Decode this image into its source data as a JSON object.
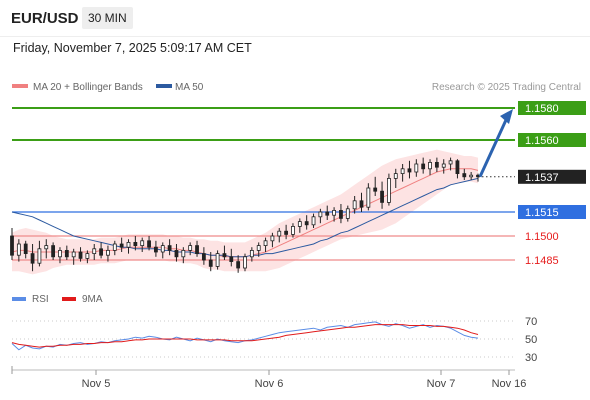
{
  "header": {
    "symbol": "EUR/USD",
    "timeframe": "30 MIN",
    "datetime": "Friday, November 7, 2025 5:09:17 AM CET"
  },
  "legend": {
    "ma20": "MA 20 + Bollinger Bands",
    "ma50": "MA 50",
    "credit": "Research © 2025 Trading Central",
    "rsi": "RSI",
    "rsi_ma": "9MA"
  },
  "colors": {
    "up": "#3b9e16",
    "down": "#e61c1c",
    "candle": "#222222",
    "ma20": "#f08080",
    "bollinger_fill": "#fde3e3",
    "ma50": "#2c5aa0",
    "pivot": "#2f6fe0",
    "support": "#ef8a8a",
    "current": "#222222",
    "arrow": "#2c63b0",
    "rsi": "#5b8de6",
    "rsi_ma": "#e11b1b"
  },
  "chart_data": {
    "type": "candlestick",
    "price_scale": [
      1.1475,
      1.1585
    ],
    "levels": [
      {
        "label": "1.1580",
        "value": 1.158,
        "kind": "resistance"
      },
      {
        "label": "1.1560",
        "value": 1.156,
        "kind": "resistance"
      },
      {
        "label": "1.1537",
        "value": 1.1537,
        "kind": "current"
      },
      {
        "label": "1.1515",
        "value": 1.1515,
        "kind": "pivot"
      },
      {
        "label": "1.1500",
        "value": 1.15,
        "kind": "support"
      },
      {
        "label": "1.1485",
        "value": 1.1485,
        "kind": "support"
      }
    ],
    "x_labels": [
      "Nov 5",
      "Nov 6",
      "Nov 7",
      "Nov 16"
    ],
    "candles": [
      [
        1.15,
        1.1505,
        1.1485,
        1.1488
      ],
      [
        1.1488,
        1.1498,
        1.1484,
        1.1495
      ],
      [
        1.1495,
        1.1497,
        1.1486,
        1.1489
      ],
      [
        1.1489,
        1.1495,
        1.1478,
        1.1483
      ],
      [
        1.1483,
        1.1497,
        1.1481,
        1.1492
      ],
      [
        1.1492,
        1.1498,
        1.1486,
        1.1494
      ],
      [
        1.1494,
        1.1496,
        1.1485,
        1.1487
      ],
      [
        1.1487,
        1.1493,
        1.1483,
        1.1491
      ],
      [
        1.1491,
        1.1494,
        1.1485,
        1.1487
      ],
      [
        1.1487,
        1.1492,
        1.1482,
        1.149
      ],
      [
        1.149,
        1.1493,
        1.1484,
        1.1486
      ],
      [
        1.1486,
        1.1491,
        1.1483,
        1.1489
      ],
      [
        1.1489,
        1.1495,
        1.1485,
        1.1492
      ],
      [
        1.1492,
        1.1496,
        1.1486,
        1.1488
      ],
      [
        1.1488,
        1.1494,
        1.1484,
        1.1491
      ],
      [
        1.1491,
        1.1497,
        1.1488,
        1.1495
      ],
      [
        1.1495,
        1.1499,
        1.149,
        1.1493
      ],
      [
        1.1493,
        1.1498,
        1.1489,
        1.1496
      ],
      [
        1.1496,
        1.15,
        1.1491,
        1.1494
      ],
      [
        1.1494,
        1.1499,
        1.149,
        1.1497
      ],
      [
        1.1497,
        1.15,
        1.1491,
        1.1493
      ],
      [
        1.1493,
        1.1497,
        1.1487,
        1.149
      ],
      [
        1.149,
        1.1496,
        1.1486,
        1.1494
      ],
      [
        1.1494,
        1.1498,
        1.1488,
        1.1491
      ],
      [
        1.1491,
        1.1495,
        1.1484,
        1.1487
      ],
      [
        1.1487,
        1.1493,
        1.1483,
        1.1491
      ],
      [
        1.1491,
        1.1496,
        1.1488,
        1.1494
      ],
      [
        1.1494,
        1.1497,
        1.1487,
        1.1489
      ],
      [
        1.1489,
        1.1493,
        1.1482,
        1.1485
      ],
      [
        1.1485,
        1.149,
        1.1478,
        1.1481
      ],
      [
        1.1481,
        1.1491,
        1.1479,
        1.1489
      ],
      [
        1.1489,
        1.1494,
        1.1485,
        1.1487
      ],
      [
        1.1487,
        1.1492,
        1.1481,
        1.1484
      ],
      [
        1.1484,
        1.1488,
        1.1477,
        1.148
      ],
      [
        1.148,
        1.1489,
        1.1478,
        1.1487
      ],
      [
        1.1487,
        1.1493,
        1.1484,
        1.1491
      ],
      [
        1.1491,
        1.1496,
        1.1487,
        1.1494
      ],
      [
        1.1494,
        1.1499,
        1.149,
        1.1497
      ],
      [
        1.1497,
        1.1502,
        1.1493,
        1.15
      ],
      [
        1.15,
        1.1505,
        1.1496,
        1.1503
      ],
      [
        1.1503,
        1.1507,
        1.1498,
        1.1501
      ],
      [
        1.1501,
        1.1508,
        1.1499,
        1.1506
      ],
      [
        1.1506,
        1.1511,
        1.1502,
        1.1509
      ],
      [
        1.1509,
        1.1513,
        1.1504,
        1.1507
      ],
      [
        1.1507,
        1.1514,
        1.1505,
        1.1512
      ],
      [
        1.1512,
        1.1517,
        1.1508,
        1.1515
      ],
      [
        1.1515,
        1.1519,
        1.151,
        1.1513
      ],
      [
        1.1513,
        1.1518,
        1.1509,
        1.1516
      ],
      [
        1.1516,
        1.152,
        1.1508,
        1.1511
      ],
      [
        1.1511,
        1.1519,
        1.1509,
        1.1517
      ],
      [
        1.1517,
        1.1525,
        1.1514,
        1.1522
      ],
      [
        1.1522,
        1.1527,
        1.1515,
        1.1518
      ],
      [
        1.1518,
        1.1533,
        1.1516,
        1.153
      ],
      [
        1.153,
        1.1537,
        1.1525,
        1.1528
      ],
      [
        1.1528,
        1.1534,
        1.1517,
        1.1521
      ],
      [
        1.1521,
        1.1539,
        1.1519,
        1.1536
      ],
      [
        1.1536,
        1.1542,
        1.153,
        1.1539
      ],
      [
        1.1539,
        1.1545,
        1.1534,
        1.1542
      ],
      [
        1.1542,
        1.1547,
        1.1536,
        1.154
      ],
      [
        1.154,
        1.1548,
        1.1537,
        1.1545
      ],
      [
        1.1545,
        1.1549,
        1.1539,
        1.1542
      ],
      [
        1.1542,
        1.1548,
        1.1538,
        1.1546
      ],
      [
        1.1546,
        1.1549,
        1.154,
        1.1543
      ],
      [
        1.1543,
        1.1548,
        1.1539,
        1.1545
      ],
      [
        1.1545,
        1.1549,
        1.1541,
        1.1547
      ],
      [
        1.1547,
        1.1548,
        1.1536,
        1.1539
      ],
      [
        1.1539,
        1.1542,
        1.1535,
        1.1537
      ],
      [
        1.1537,
        1.154,
        1.1535,
        1.1538
      ],
      [
        1.1538,
        1.1539,
        1.1534,
        1.1537
      ]
    ],
    "ma20": [
      1.149,
      1.1491,
      1.1491,
      1.149,
      1.149,
      1.149,
      1.149,
      1.149,
      1.149,
      1.149,
      1.149,
      1.149,
      1.149,
      1.1491,
      1.1491,
      1.1491,
      1.1492,
      1.1493,
      1.1493,
      1.1493,
      1.1493,
      1.1493,
      1.1493,
      1.1492,
      1.1492,
      1.1491,
      1.1491,
      1.149,
      1.1489,
      1.1488,
      1.1488,
      1.1487,
      1.1487,
      1.1487,
      1.1487,
      1.1488,
      1.1489,
      1.149,
      1.1492,
      1.1494,
      1.1496,
      1.1498,
      1.15,
      1.1502,
      1.1504,
      1.1506,
      1.1508,
      1.151,
      1.1512,
      1.1514,
      1.1516,
      1.1518,
      1.152,
      1.1522,
      1.1524,
      1.1526,
      1.1528,
      1.153,
      1.1532,
      1.1534,
      1.1536,
      1.1538,
      1.154,
      1.1541,
      1.1542,
      1.1542,
      1.1542,
      1.1542,
      1.1541
    ],
    "bb_width": [
      0.0012,
      0.0013,
      0.0014,
      0.0014,
      0.0013,
      0.0012,
      0.001,
      0.0009,
      0.0008,
      0.0008,
      0.0008,
      0.0008,
      0.0008,
      0.0008,
      0.0008,
      0.0008,
      0.0008,
      0.0008,
      0.0008,
      0.0008,
      0.0008,
      0.0008,
      0.0008,
      0.0008,
      0.0008,
      0.0008,
      0.0008,
      0.0008,
      0.0009,
      0.0009,
      0.0009,
      0.0009,
      0.0009,
      0.0009,
      0.0009,
      0.001,
      0.0011,
      0.0012,
      0.0013,
      0.0014,
      0.0014,
      0.0014,
      0.0014,
      0.0014,
      0.0014,
      0.0014,
      0.0014,
      0.0014,
      0.0014,
      0.0015,
      0.0016,
      0.0017,
      0.0018,
      0.0019,
      0.002,
      0.002,
      0.002,
      0.0019,
      0.0018,
      0.0017,
      0.0016,
      0.0015,
      0.0014,
      0.0012,
      0.001,
      0.0009,
      0.0008,
      0.0008,
      0.0008
    ],
    "ma50": [
      1.1515,
      1.1514,
      1.1513,
      1.1512,
      1.151,
      1.1508,
      1.1506,
      1.1504,
      1.1502,
      1.15,
      1.1499,
      1.1498,
      1.1497,
      1.1496,
      1.1495,
      1.1494,
      1.1493,
      1.1493,
      1.1492,
      1.1492,
      1.1492,
      1.1492,
      1.1491,
      1.1491,
      1.149,
      1.149,
      1.149,
      1.1489,
      1.1489,
      1.1488,
      1.1488,
      1.1488,
      1.1487,
      1.1487,
      1.1487,
      1.1488,
      1.1488,
      1.1489,
      1.1489,
      1.149,
      1.1491,
      1.1492,
      1.1493,
      1.1494,
      1.1495,
      1.1497,
      1.1498,
      1.15,
      1.1502,
      1.1503,
      1.1505,
      1.1507,
      1.1509,
      1.1511,
      1.1513,
      1.1515,
      1.1517,
      1.1519,
      1.1521,
      1.1523,
      1.1525,
      1.1527,
      1.1529,
      1.153,
      1.1532,
      1.1533,
      1.1534,
      1.1535,
      1.1536
    ],
    "projection": {
      "from": 1.1537,
      "to": 1.158
    },
    "rsi": {
      "ticks": [
        30,
        50,
        70
      ],
      "scale": [
        20,
        80
      ],
      "values": [
        45,
        38,
        43,
        40,
        39,
        42,
        41,
        44,
        43,
        45,
        46,
        44,
        45,
        47,
        46,
        48,
        49,
        50,
        52,
        51,
        53,
        52,
        50,
        49,
        52,
        50,
        48,
        51,
        49,
        47,
        50,
        48,
        47,
        46,
        48,
        49,
        51,
        53,
        55,
        57,
        58,
        59,
        60,
        61,
        62,
        60,
        63,
        64,
        65,
        63,
        66,
        67,
        68,
        69,
        66,
        64,
        67,
        65,
        62,
        64,
        66,
        63,
        65,
        64,
        62,
        58,
        54,
        52,
        51
      ],
      "ma": [
        46,
        44,
        43,
        42,
        41,
        42,
        42,
        43,
        43,
        44,
        44,
        45,
        45,
        46,
        46,
        47,
        47,
        48,
        49,
        49,
        50,
        50,
        50,
        50,
        50,
        50,
        50,
        49,
        49,
        49,
        49,
        49,
        48,
        48,
        48,
        48,
        49,
        50,
        51,
        52,
        54,
        55,
        56,
        57,
        58,
        59,
        60,
        61,
        62,
        63,
        63,
        64,
        65,
        66,
        66,
        66,
        66,
        66,
        65,
        65,
        65,
        65,
        64,
        64,
        63,
        62,
        60,
        57,
        55
      ]
    }
  }
}
